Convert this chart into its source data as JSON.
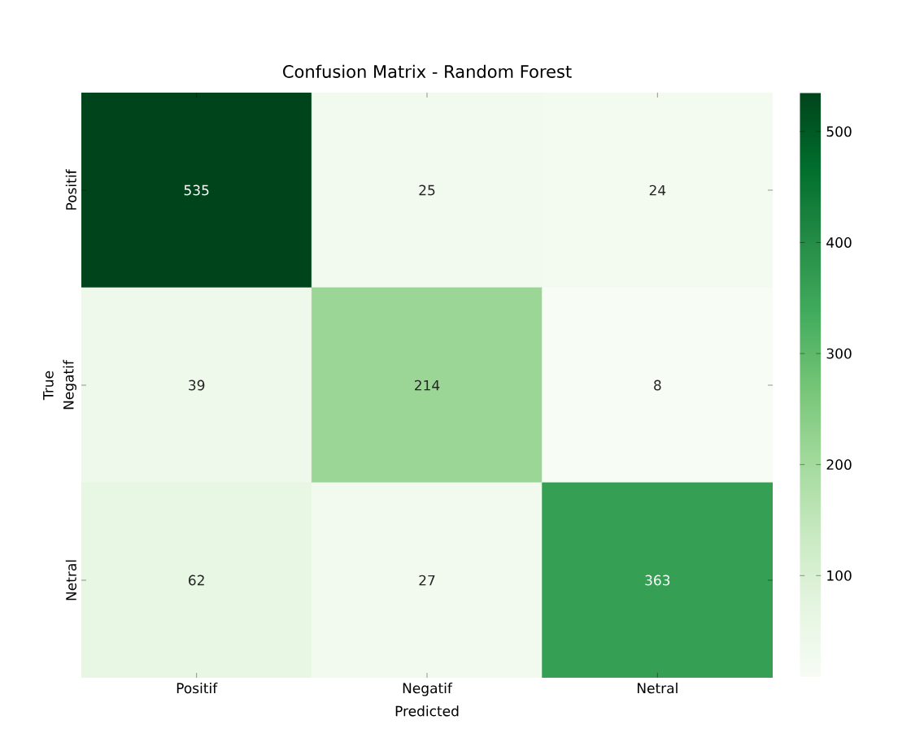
{
  "chart_data": {
    "type": "heatmap",
    "title": "Confusion Matrix - Random Forest",
    "xlabel": "Predicted",
    "ylabel": "True",
    "categories": [
      "Positif",
      "Negatif",
      "Netral"
    ],
    "y_categories": [
      "Positif",
      "Negatif",
      "Netral"
    ],
    "cells": [
      [
        535,
        25,
        24
      ],
      [
        39,
        214,
        8
      ],
      [
        62,
        27,
        363
      ]
    ],
    "data_labels": true,
    "clim": [
      8,
      535
    ],
    "cticks": [
      100,
      200,
      300,
      400,
      500
    ]
  }
}
